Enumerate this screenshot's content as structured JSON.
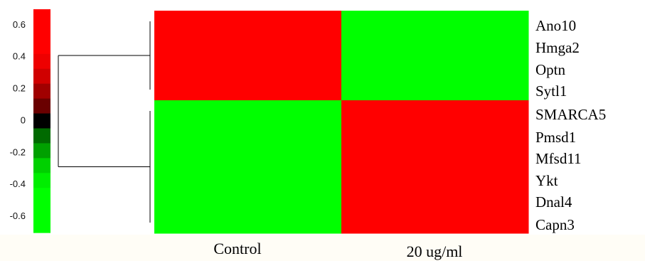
{
  "chart_data": {
    "type": "heatmap",
    "columns": [
      "Control",
      "20 ug/ml"
    ],
    "rows": [
      "Ano10",
      "Hmga2",
      "Optn",
      "Sytl1",
      "SMARCA5",
      "Pmsd1",
      "Mfsd11",
      "Ykt",
      "Dnal4",
      "Capn3"
    ],
    "values": [
      [
        0.6,
        -0.6
      ],
      [
        0.6,
        -0.6
      ],
      [
        0.6,
        -0.6
      ],
      [
        0.6,
        -0.6
      ],
      [
        -0.6,
        0.6
      ],
      [
        -0.6,
        0.6
      ],
      [
        -0.6,
        0.6
      ],
      [
        -0.6,
        0.6
      ],
      [
        -0.6,
        0.6
      ],
      [
        -0.6,
        0.6
      ]
    ],
    "colorbar": {
      "ticks": [
        "0.6",
        "0.4",
        "0.2",
        "0",
        "-0.2",
        "-0.4",
        "-0.6"
      ],
      "tick_values": [
        0.6,
        0.4,
        0.2,
        0,
        -0.2,
        -0.4,
        -0.6
      ],
      "range": [
        -0.7,
        0.7
      ],
      "colors": [
        "#ff0000",
        "#ff0000",
        "#ff0000",
        "#ee0000",
        "#d00000",
        "#a00000",
        "#6a0000",
        "#000000",
        "#006a00",
        "#00a000",
        "#00d000",
        "#00ee00",
        "#00ff00",
        "#00ff00",
        "#00ff00"
      ]
    },
    "dendrogram": {
      "clusters": [
        {
          "rows": [
            "Ano10",
            "Hmga2",
            "Optn",
            "Sytl1"
          ]
        },
        {
          "rows": [
            "SMARCA5",
            "Pmsd1",
            "Mfsd11",
            "Ykt",
            "Dnal4",
            "Capn3"
          ]
        }
      ]
    },
    "high_color": "#ff0000",
    "low_color": "#00ff00",
    "mid_color": "#000000"
  }
}
